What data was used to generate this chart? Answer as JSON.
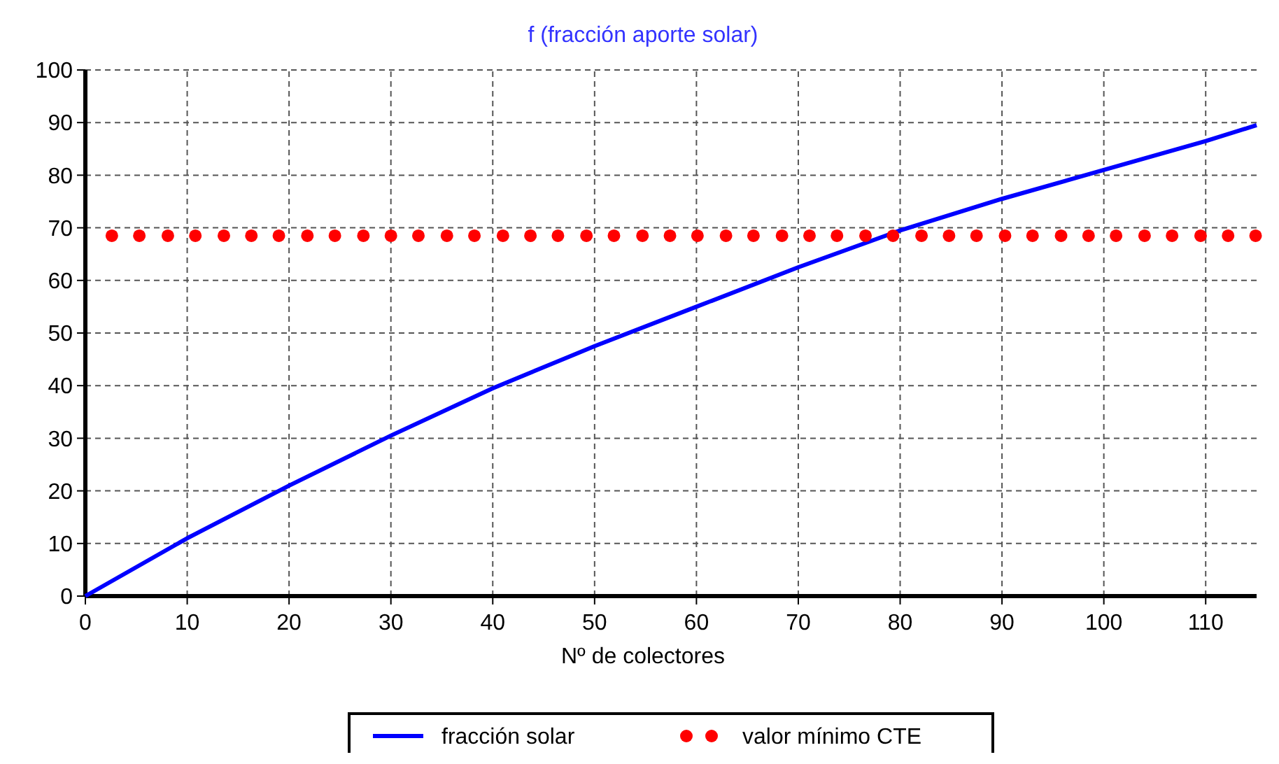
{
  "chart_data": {
    "type": "line",
    "title": "f (fracción aporte solar)",
    "xlabel": "Nº de colectores",
    "xlim": [
      0,
      115
    ],
    "xticks": [
      0,
      10,
      20,
      30,
      40,
      50,
      60,
      70,
      80,
      90,
      100,
      110
    ],
    "ylim": [
      0,
      100
    ],
    "yticks": [
      0,
      10,
      20,
      30,
      40,
      50,
      60,
      70,
      80,
      90,
      100
    ],
    "grid": true,
    "legend": "bottom",
    "series": [
      {
        "name": "fracción solar",
        "color": "#0000ff",
        "line_style": "solid",
        "x": [
          0,
          10,
          20,
          30,
          40,
          50,
          60,
          70,
          80,
          90,
          100,
          110,
          115
        ],
        "values": [
          0,
          11,
          21,
          30.5,
          39.5,
          47.5,
          55,
          62.5,
          69.5,
          75.5,
          81,
          86.5,
          89.5
        ]
      },
      {
        "name": "valor mínimo CTE",
        "color": "#ff0000",
        "type": "scatter",
        "marker": "circle",
        "x": [
          2.6,
          5.3,
          8.1,
          10.8,
          13.6,
          16.3,
          19.0,
          21.8,
          24.5,
          27.3,
          30.0,
          32.7,
          35.5,
          38.2,
          41.0,
          43.7,
          46.4,
          49.2,
          51.9,
          54.7,
          57.4,
          60.1,
          62.9,
          65.6,
          68.4,
          71.1,
          73.8,
          76.6,
          79.3,
          82.1,
          84.8,
          87.5,
          90.3,
          93.0,
          95.8,
          98.5,
          101.2,
          104.0,
          106.7,
          109.5,
          112.2,
          114.9
        ],
        "values": [
          68.5,
          68.5,
          68.5,
          68.5,
          68.5,
          68.5,
          68.5,
          68.5,
          68.5,
          68.5,
          68.5,
          68.5,
          68.5,
          68.5,
          68.5,
          68.5,
          68.5,
          68.5,
          68.5,
          68.5,
          68.5,
          68.5,
          68.5,
          68.5,
          68.5,
          68.5,
          68.5,
          68.5,
          68.5,
          68.5,
          68.5,
          68.5,
          68.5,
          68.5,
          68.5,
          68.5,
          68.5,
          68.5,
          68.5,
          68.5,
          68.5,
          68.5
        ]
      }
    ]
  }
}
